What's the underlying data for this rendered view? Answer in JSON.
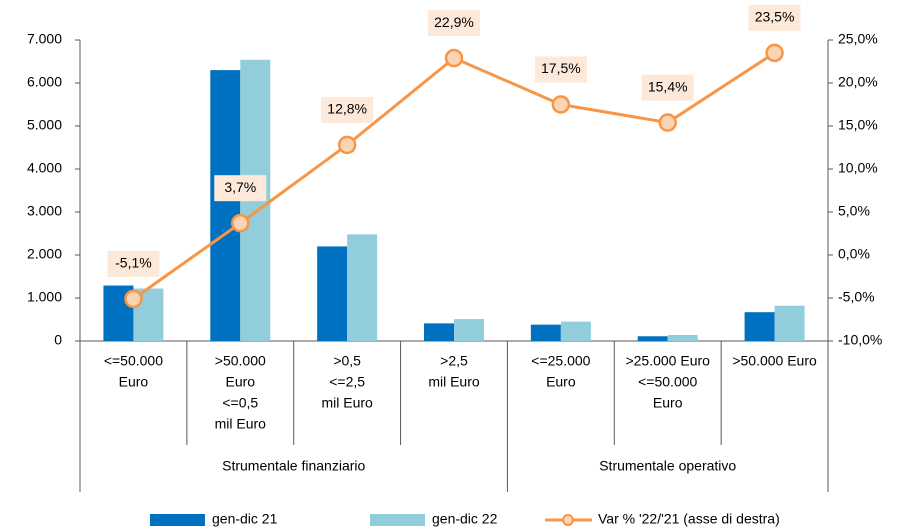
{
  "chart_data": {
    "type": "bar_line",
    "groups": [
      {
        "name": "Strumentale finanziario",
        "categories": [
          [
            "<=50.000",
            "Euro"
          ],
          [
            ">50.000",
            "Euro",
            "<=0,5",
            "mil Euro"
          ],
          [
            ">0,5",
            "<=2,5",
            "mil Euro"
          ],
          [
            ">2,5",
            "mil Euro"
          ]
        ]
      },
      {
        "name": "Strumentale operativo",
        "categories": [
          [
            "<=25.000",
            "Euro"
          ],
          [
            ">25.000 Euro",
            "<=50.000",
            "Euro"
          ],
          [
            ">50.000 Euro"
          ]
        ]
      }
    ],
    "series": [
      {
        "name": "gen-dic 21",
        "type": "bar",
        "color": "#0070c0",
        "values": [
          1290,
          6300,
          2200,
          410,
          380,
          110,
          670
        ]
      },
      {
        "name": "gen-dic 22",
        "type": "bar",
        "color": "#92cddc",
        "values": [
          1220,
          6540,
          2480,
          510,
          450,
          140,
          820
        ]
      },
      {
        "name": "Var % '22/'21 (asse di destra)",
        "type": "line",
        "axis": "y2",
        "color": "#f79646",
        "marker_fill": "#fbd4b4",
        "values": [
          -5.1,
          3.7,
          12.8,
          22.9,
          17.5,
          15.4,
          23.5
        ],
        "value_labels": [
          "-5,1%",
          "3,7%",
          "12,8%",
          "22,9%",
          "17,5%",
          "15,4%",
          "23,5%"
        ]
      }
    ],
    "ylim": [
      0,
      7000
    ],
    "yticks": [
      0,
      {
        "value": 1000,
        "label": "1.000"
      },
      {
        "value": 2000,
        "label": "2.000"
      },
      {
        "value": 3000,
        "label": "3.000"
      },
      {
        "value": 4000,
        "label": "4.000"
      },
      {
        "value": 5000,
        "label": "5.000"
      },
      {
        "value": 6000,
        "label": "6.000"
      },
      {
        "value": 7000,
        "label": "7.000"
      }
    ],
    "y2lim": [
      -10,
      25
    ],
    "y2ticks": [
      {
        "value": -10,
        "label": "-10,0%"
      },
      {
        "value": -5,
        "label": "-5,0%"
      },
      {
        "value": 0,
        "label": "0,0%"
      },
      {
        "value": 5,
        "label": "5,0%"
      },
      {
        "value": 10,
        "label": "10,0%"
      },
      {
        "value": 15,
        "label": "15,0%"
      },
      {
        "value": 20,
        "label": "20,0%"
      },
      {
        "value": 25,
        "label": "25,0%"
      }
    ],
    "legend": "bottom"
  }
}
